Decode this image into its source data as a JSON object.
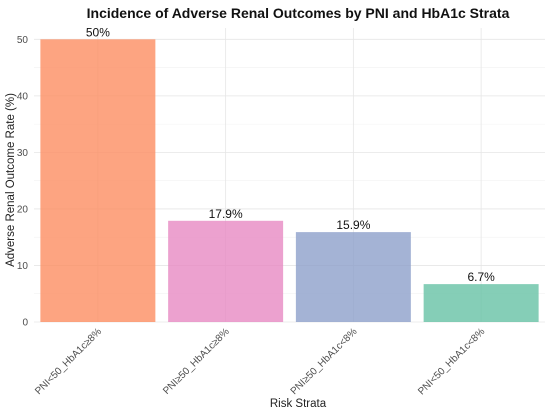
{
  "chart_data": {
    "type": "bar",
    "title": "Incidence of Adverse Renal Outcomes by PNI and HbA1c Strata",
    "xlabel": "Risk Strata",
    "ylabel": "Adverse Renal Outcome Rate (%)",
    "ylim": [
      0,
      52
    ],
    "yticks": [
      0,
      10,
      20,
      30,
      40,
      50
    ],
    "grid": true,
    "legend": "none",
    "categories": [
      "PNI<50_HbA1c≥8%",
      "PNI≥50_HbA1c≥8%",
      "PNI≥50_HbA1c<8%",
      "PNI<50_HbA1c<8%"
    ],
    "values": [
      50,
      17.9,
      15.9,
      6.7
    ],
    "data_labels": [
      "50%",
      "17.9%",
      "15.9%",
      "6.7%"
    ],
    "colors": [
      "#FC8D62",
      "#E78AC3",
      "#8DA0CB",
      "#66C2A5"
    ]
  }
}
